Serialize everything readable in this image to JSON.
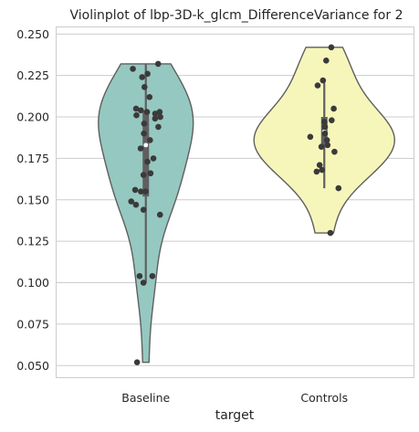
{
  "chart_data": {
    "type": "violin",
    "title": "Violinplot of lbp-3D-k_glcm_DifferenceVariance for 2",
    "xlabel": "target",
    "ylabel": "",
    "ylim": [
      0.043,
      0.254
    ],
    "yticks": [
      "0.050",
      "0.075",
      "0.100",
      "0.125",
      "0.150",
      "0.175",
      "0.200",
      "0.225",
      "0.250"
    ],
    "ytick_values": [
      0.05,
      0.075,
      0.1,
      0.125,
      0.15,
      0.175,
      0.2,
      0.225,
      0.25
    ],
    "grid": true,
    "categories": [
      "Baseline",
      "Controls"
    ],
    "series": [
      {
        "category": "Baseline",
        "color": "#95c8c0",
        "quartiles": {
          "min": 0.1,
          "q1": 0.152,
          "median": 0.183,
          "q3": 0.204,
          "max": 0.232
        },
        "violin_extent": [
          0.052,
          0.232
        ],
        "points": [
          0.232,
          0.229,
          0.226,
          0.224,
          0.218,
          0.212,
          0.205,
          0.204,
          0.203,
          0.203,
          0.202,
          0.201,
          0.2,
          0.199,
          0.196,
          0.194,
          0.19,
          0.186,
          0.181,
          0.175,
          0.173,
          0.166,
          0.165,
          0.156,
          0.155,
          0.155,
          0.149,
          0.147,
          0.144,
          0.141,
          0.104,
          0.104,
          0.1,
          0.052
        ]
      },
      {
        "category": "Controls",
        "color": "#f6f6bb",
        "quartiles": {
          "min": 0.157,
          "q1": 0.182,
          "median": 0.191,
          "q3": 0.2,
          "max": 0.221
        },
        "violin_extent": [
          0.13,
          0.242
        ],
        "points": [
          0.242,
          0.234,
          0.222,
          0.219,
          0.205,
          0.198,
          0.197,
          0.194,
          0.19,
          0.188,
          0.186,
          0.183,
          0.182,
          0.179,
          0.171,
          0.168,
          0.167,
          0.157,
          0.13
        ]
      }
    ]
  }
}
